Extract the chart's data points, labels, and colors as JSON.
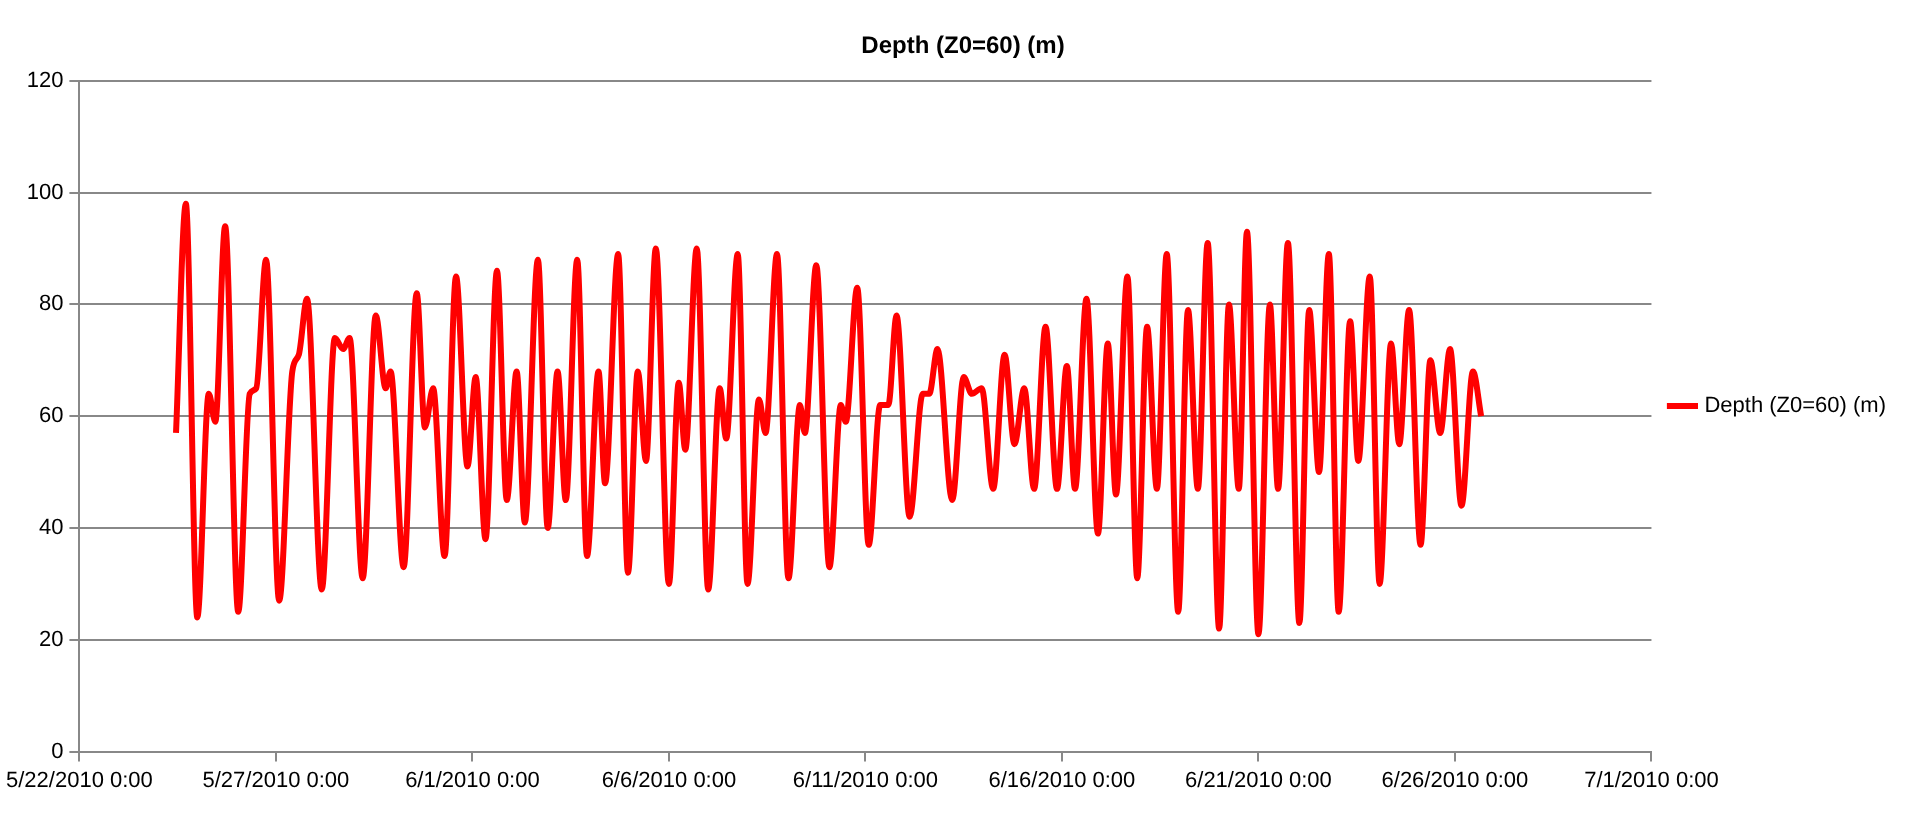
{
  "chart_data": {
    "type": "line",
    "title": "Depth (Z0=60) (m)",
    "x": [
      "2010-05-24T11:00",
      "2010-05-24T17:00",
      "2010-05-25T00:00",
      "2010-05-25T07:00",
      "2010-05-25T11:00",
      "2010-05-25T17:00",
      "2010-05-26T01:00",
      "2010-05-26T08:00",
      "2010-05-26T12:00",
      "2010-05-26T18:00",
      "2010-05-27T02:00",
      "2010-05-27T10:00",
      "2010-05-27T14:00",
      "2010-05-27T19:00",
      "2010-05-28T04:00",
      "2010-05-28T12:00",
      "2010-05-28T17:00",
      "2010-05-28T21:00",
      "2010-05-29T05:00",
      "2010-05-29T13:00",
      "2010-05-29T19:00",
      "2010-05-29T22:00",
      "2010-05-30T06:00",
      "2010-05-30T14:00",
      "2010-05-30T19:00",
      "2010-05-31T00:00",
      "2010-05-31T07:00",
      "2010-05-31T14:00",
      "2010-05-31T21:00",
      "2010-06-01T02:00",
      "2010-06-01T08:00",
      "2010-06-01T15:00",
      "2010-06-01T21:00",
      "2010-06-02T03:00",
      "2010-06-02T08:00",
      "2010-06-02T16:00",
      "2010-06-02T22:00",
      "2010-06-03T04:00",
      "2010-06-03T09:00",
      "2010-06-03T16:00",
      "2010-06-03T22:00",
      "2010-06-04T05:00",
      "2010-06-04T09:00",
      "2010-06-04T17:00",
      "2010-06-04T23:00",
      "2010-06-05T05:00",
      "2010-06-05T10:00",
      "2010-06-05T16:00",
      "2010-06-06T00:00",
      "2010-06-06T06:00",
      "2010-06-06T10:00",
      "2010-06-06T17:00",
      "2010-06-07T00:00",
      "2010-06-07T07:00",
      "2010-06-07T11:00",
      "2010-06-07T18:00",
      "2010-06-08T00:00",
      "2010-06-08T07:00",
      "2010-06-08T11:00",
      "2010-06-08T18:00",
      "2010-06-09T01:00",
      "2010-06-09T08:00",
      "2010-06-09T11:00",
      "2010-06-09T18:00",
      "2010-06-10T02:00",
      "2010-06-10T09:00",
      "2010-06-10T12:00",
      "2010-06-10T19:00",
      "2010-06-11T02:00",
      "2010-06-11T09:00",
      "2010-06-11T14:00",
      "2010-06-11T19:00",
      "2010-06-12T03:00",
      "2010-06-12T11:00",
      "2010-06-12T15:00",
      "2010-06-12T20:00",
      "2010-06-13T05:00",
      "2010-06-13T12:00",
      "2010-06-13T17:00",
      "2010-06-13T23:00",
      "2010-06-14T06:00",
      "2010-06-14T13:00",
      "2010-06-14T19:00",
      "2010-06-15T01:00",
      "2010-06-15T07:00",
      "2010-06-15T14:00",
      "2010-06-15T21:00",
      "2010-06-16T03:00",
      "2010-06-16T08:00",
      "2010-06-16T15:00",
      "2010-06-16T22:00",
      "2010-06-17T04:00",
      "2010-06-17T09:00",
      "2010-06-17T16:00",
      "2010-06-17T22:00",
      "2010-06-18T04:00",
      "2010-06-18T10:00",
      "2010-06-18T16:00",
      "2010-06-18T23:00",
      "2010-06-19T05:00",
      "2010-06-19T11:00",
      "2010-06-19T17:00",
      "2010-06-20T00:00",
      "2010-06-20T06:00",
      "2010-06-20T12:00",
      "2010-06-20T17:00",
      "2010-06-21T00:00",
      "2010-06-21T07:00",
      "2010-06-21T12:00",
      "2010-06-21T18:00",
      "2010-06-22T01:00",
      "2010-06-22T07:00",
      "2010-06-22T13:00",
      "2010-06-22T19:00",
      "2010-06-23T01:00",
      "2010-06-23T08:00",
      "2010-06-23T13:00",
      "2010-06-23T20:00",
      "2010-06-24T02:00",
      "2010-06-24T09:00",
      "2010-06-24T14:00",
      "2010-06-24T20:00",
      "2010-06-25T03:00",
      "2010-06-25T09:00",
      "2010-06-25T15:00",
      "2010-06-25T21:00",
      "2010-06-26T04:00",
      "2010-06-26T11:00",
      "2010-06-26T16:00"
    ],
    "series": [
      {
        "name": "Depth (Z0=60) (m)",
        "color": "#ff0000",
        "values": [
          57,
          98,
          24,
          64,
          59,
          94,
          25,
          64,
          65,
          88,
          27,
          68,
          71,
          81,
          29,
          74,
          72,
          74,
          31,
          78,
          65,
          68,
          33,
          82,
          58,
          65,
          35,
          85,
          51,
          67,
          38,
          86,
          45,
          68,
          41,
          88,
          40,
          68,
          45,
          88,
          35,
          68,
          48,
          89,
          32,
          68,
          52,
          90,
          30,
          66,
          54,
          90,
          29,
          65,
          56,
          89,
          30,
          63,
          57,
          89,
          31,
          62,
          57,
          87,
          33,
          62,
          59,
          83,
          37,
          62,
          62,
          78,
          42,
          64,
          64,
          72,
          45,
          67,
          64,
          65,
          47,
          71,
          55,
          65,
          47,
          76,
          47,
          69,
          47,
          81,
          39,
          73,
          46,
          85,
          31,
          76,
          47,
          89,
          25,
          79,
          47,
          91,
          22,
          80,
          47,
          93,
          21,
          80,
          47,
          91,
          23,
          79,
          50,
          89,
          25,
          77,
          52,
          85,
          30,
          73,
          55,
          79,
          37,
          70,
          57,
          72,
          44,
          68,
          60
        ]
      }
    ],
    "xlim": [
      "2010-05-22",
      "2010-07-01"
    ],
    "xticks": [
      {
        "value": "2010-05-22",
        "label": "5/22/2010 0:00"
      },
      {
        "value": "2010-05-27",
        "label": "5/27/2010 0:00"
      },
      {
        "value": "2010-06-01",
        "label": "6/1/2010 0:00"
      },
      {
        "value": "2010-06-06",
        "label": "6/6/2010 0:00"
      },
      {
        "value": "2010-06-11",
        "label": "6/11/2010 0:00"
      },
      {
        "value": "2010-06-16",
        "label": "6/16/2010 0:00"
      },
      {
        "value": "2010-06-21",
        "label": "6/21/2010 0:00"
      },
      {
        "value": "2010-06-26",
        "label": "6/26/2010 0:00"
      },
      {
        "value": "2010-07-01",
        "label": "7/1/2010 0:00"
      }
    ],
    "ylim": [
      0,
      120
    ],
    "yticks": [
      0,
      20,
      40,
      60,
      80,
      100,
      120
    ],
    "grid": "y",
    "legend": "right",
    "marker": "none",
    "line_style": "solid"
  }
}
